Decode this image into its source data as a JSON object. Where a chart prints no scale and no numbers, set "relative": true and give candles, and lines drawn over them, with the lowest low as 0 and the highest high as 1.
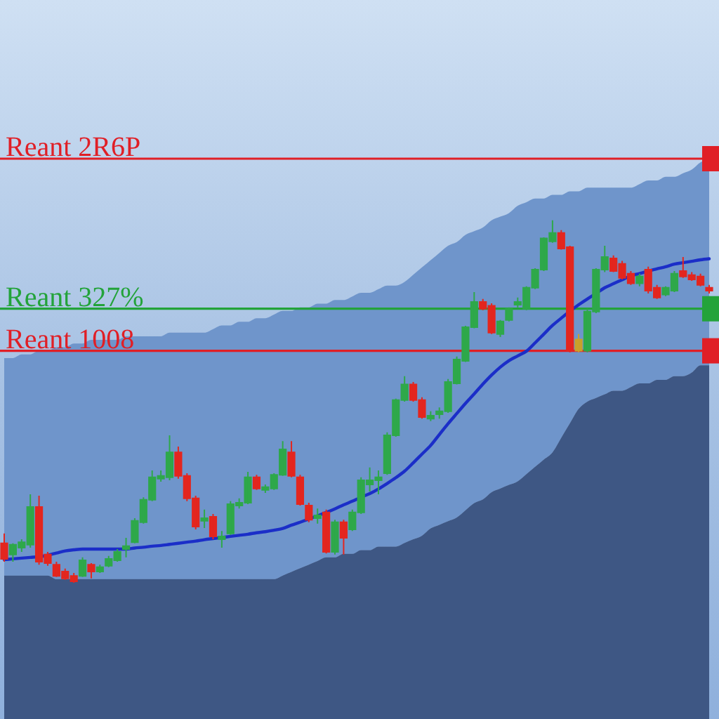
{
  "chart_data": {
    "type": "candlestick",
    "relative": true,
    "categories": [
      null,
      null,
      null,
      null,
      null,
      null,
      null,
      null,
      null,
      null,
      null,
      null,
      null,
      null,
      null,
      null,
      null,
      null,
      null,
      null,
      null,
      null,
      null,
      null,
      null,
      null,
      null,
      null,
      null,
      null,
      null,
      null,
      null,
      null,
      null,
      null,
      null,
      null,
      null,
      null,
      null,
      null,
      null,
      null,
      null,
      null,
      null,
      null,
      null,
      null,
      null,
      null,
      null,
      null,
      null,
      null,
      null,
      null,
      null,
      null,
      null,
      null,
      null,
      null,
      null,
      null,
      null,
      null,
      null,
      null,
      null,
      null,
      null,
      null,
      null,
      null,
      null,
      null,
      null,
      null,
      null,
      null
    ],
    "series": [
      {
        "type": "area",
        "color": "#3e5784",
        "values": [
          0.02,
          0.02,
          0.02,
          0.02,
          0.02,
          0.02,
          0.01,
          0.01,
          0.01,
          0.01,
          0.01,
          0.01,
          0.01,
          0.01,
          0.01,
          0.01,
          0.01,
          0.01,
          0.01,
          0.01,
          0.01,
          0.01,
          0.01,
          0.01,
          0.01,
          0.01,
          0.01,
          0.01,
          0.01,
          0.01,
          0.01,
          0.01,
          0.02,
          0.03,
          0.04,
          0.05,
          0.06,
          0.07,
          0.07,
          0.08,
          0.08,
          0.09,
          0.09,
          0.1,
          0.1,
          0.1,
          0.11,
          0.12,
          0.13,
          0.15,
          0.16,
          0.17,
          0.18,
          0.2,
          0.22,
          0.23,
          0.25,
          0.26,
          0.27,
          0.28,
          0.3,
          0.32,
          0.34,
          0.36,
          0.4,
          0.44,
          0.48,
          0.5,
          0.51,
          0.52,
          0.53,
          0.53,
          0.54,
          0.55,
          0.55,
          0.56,
          0.56,
          0.57,
          0.57,
          0.58,
          0.6,
          0.6
        ]
      },
      {
        "type": "candlestick",
        "ohlc": [
          [
            0.109,
            0.136,
            0.058,
            0.066
          ],
          [
            0.078,
            0.109,
            0.058,
            0.105
          ],
          [
            0.097,
            0.12,
            0.085,
            0.112
          ],
          [
            0.105,
            0.244,
            0.097,
            0.209
          ],
          [
            0.209,
            0.24,
            0.05,
            0.058
          ],
          [
            0.078,
            0.085,
            0.047,
            0.054
          ],
          [
            0.05,
            0.058,
            0.016,
            0.019
          ],
          [
            0.031,
            0.039,
            0.008,
            0.012
          ],
          [
            0.019,
            0.027,
            0,
            0.004
          ],
          [
            0.019,
            0.07,
            0.016,
            0.062
          ],
          [
            0.05,
            0.054,
            0.012,
            0.031
          ],
          [
            0.031,
            0.05,
            0.027,
            0.043
          ],
          [
            0.047,
            0.074,
            0.043,
            0.066
          ],
          [
            0.062,
            0.093,
            0.058,
            0.085
          ],
          [
            0.093,
            0.124,
            0.07,
            0.101
          ],
          [
            0.112,
            0.178,
            0.109,
            0.171
          ],
          [
            0.167,
            0.236,
            0.163,
            0.229
          ],
          [
            0.229,
            0.31,
            0.225,
            0.291
          ],
          [
            0.287,
            0.31,
            0.279,
            0.295
          ],
          [
            0.291,
            0.407,
            0.283,
            0.36
          ],
          [
            0.36,
            0.376,
            0.287,
            0.295
          ],
          [
            0.295,
            0.302,
            0.225,
            0.233
          ],
          [
            0.233,
            0.24,
            0.147,
            0.155
          ],
          [
            0.171,
            0.202,
            0.151,
            0.178
          ],
          [
            0.182,
            0.19,
            0.12,
            0.128
          ],
          [
            0.12,
            0.143,
            0.097,
            0.128
          ],
          [
            0.136,
            0.225,
            0.132,
            0.217
          ],
          [
            0.213,
            0.233,
            0.205,
            0.221
          ],
          [
            0.221,
            0.306,
            0.217,
            0.291
          ],
          [
            0.291,
            0.298,
            0.256,
            0.26
          ],
          [
            0.256,
            0.271,
            0.248,
            0.264
          ],
          [
            0.26,
            0.302,
            0.256,
            0.298
          ],
          [
            0.298,
            0.391,
            0.295,
            0.368
          ],
          [
            0.36,
            0.391,
            0.291,
            0.295
          ],
          [
            0.291,
            0.298,
            0.213,
            0.217
          ],
          [
            0.213,
            0.221,
            0.167,
            0.174
          ],
          [
            0.178,
            0.205,
            0.163,
            0.186
          ],
          [
            0.194,
            0.202,
            0.081,
            0.085
          ],
          [
            0.085,
            0.174,
            0.078,
            0.167
          ],
          [
            0.167,
            0.174,
            0.078,
            0.124
          ],
          [
            0.147,
            0.202,
            0.143,
            0.194
          ],
          [
            0.194,
            0.291,
            0.19,
            0.283
          ],
          [
            0.271,
            0.318,
            0.252,
            0.283
          ],
          [
            0.283,
            0.31,
            0.244,
            0.291
          ],
          [
            0.302,
            0.415,
            0.298,
            0.407
          ],
          [
            0.407,
            0.508,
            0.403,
            0.504
          ],
          [
            0.504,
            0.57,
            0.5,
            0.547
          ],
          [
            0.547,
            0.554,
            0.5,
            0.504
          ],
          [
            0.504,
            0.512,
            0.453,
            0.457
          ],
          [
            0.453,
            0.473,
            0.446,
            0.461
          ],
          [
            0.465,
            0.484,
            0.453,
            0.473
          ],
          [
            0.473,
            0.562,
            0.469,
            0.554
          ],
          [
            0.55,
            0.624,
            0.547,
            0.616
          ],
          [
            0.612,
            0.709,
            0.609,
            0.705
          ],
          [
            0.705,
            0.802,
            0.702,
            0.775
          ],
          [
            0.775,
            0.783,
            0.752,
            0.756
          ],
          [
            0.764,
            0.771,
            0.686,
            0.69
          ],
          [
            0.686,
            0.725,
            0.678,
            0.721
          ],
          [
            0.725,
            0.76,
            0.721,
            0.756
          ],
          [
            0.767,
            0.787,
            0.76,
            0.775
          ],
          [
            0.756,
            0.818,
            0.752,
            0.814
          ],
          [
            0.814,
            0.868,
            0.81,
            0.864
          ],
          [
            0.864,
            0.953,
            0.86,
            0.95
          ],
          [
            0.942,
            1,
            0.938,
            0.965
          ],
          [
            0.965,
            0.973,
            0.919,
            0.922
          ],
          [
            0.926,
            0.93,
            0.636,
            0.64
          ],
          [
            0.64,
            0.686,
            0.636,
            0.671
          ],
          [
            0.64,
            0.756,
            0.636,
            0.748
          ],
          [
            0.748,
            0.868,
            0.744,
            0.864
          ],
          [
            0.864,
            0.93,
            0.857,
            0.899
          ],
          [
            0.895,
            0.903,
            0.857,
            0.86
          ],
          [
            0.88,
            0.888,
            0.837,
            0.841
          ],
          [
            0.853,
            0.86,
            0.822,
            0.826
          ],
          [
            0.826,
            0.853,
            0.818,
            0.845
          ],
          [
            0.864,
            0.872,
            0.798,
            0.806
          ],
          [
            0.814,
            0.822,
            0.783,
            0.787
          ],
          [
            0.795,
            0.818,
            0.791,
            0.814
          ],
          [
            0.806,
            0.86,
            0.802,
            0.853
          ],
          [
            0.86,
            0.899,
            0.841,
            0.845
          ],
          [
            0.849,
            0.857,
            0.833,
            0.837
          ],
          [
            0.845,
            0.853,
            0.818,
            0.822
          ],
          [
            0.814,
            0.822,
            0.798,
            0.806
          ]
        ],
        "colors": [
          "#e3261f",
          "#2ea84a",
          "#2ea84a",
          "#2ea84a",
          "#e3261f",
          "#e3261f",
          "#e3261f",
          "#e3261f",
          "#e3261f",
          "#2ea84a",
          "#e3261f",
          "#2ea84a",
          "#2ea84a",
          "#2ea84a",
          "#2ea84a",
          "#2ea84a",
          "#2ea84a",
          "#2ea84a",
          "#2ea84a",
          "#2ea84a",
          "#e3261f",
          "#e3261f",
          "#e3261f",
          "#2ea84a",
          "#e3261f",
          "#2ea84a",
          "#2ea84a",
          "#2ea84a",
          "#2ea84a",
          "#e3261f",
          "#2ea84a",
          "#2ea84a",
          "#2ea84a",
          "#e3261f",
          "#e3261f",
          "#e3261f",
          "#2ea84a",
          "#e3261f",
          "#2ea84a",
          "#e3261f",
          "#2ea84a",
          "#2ea84a",
          "#2ea84a",
          "#2ea84a",
          "#2ea84a",
          "#2ea84a",
          "#2ea84a",
          "#e3261f",
          "#e3261f",
          "#2ea84a",
          "#2ea84a",
          "#2ea84a",
          "#2ea84a",
          "#2ea84a",
          "#2ea84a",
          "#e3261f",
          "#e3261f",
          "#2ea84a",
          "#2ea84a",
          "#2ea84a",
          "#2ea84a",
          "#2ea84a",
          "#2ea84a",
          "#2ea84a",
          "#e3261f",
          "#e3261f",
          "#c9a12a",
          "#2ea84a",
          "#2ea84a",
          "#2ea84a",
          "#e3261f",
          "#e3261f",
          "#e3261f",
          "#2ea84a",
          "#e3261f",
          "#e3261f",
          "#2ea84a",
          "#2ea84a",
          "#e3261f",
          "#e3261f",
          "#e3261f",
          "#e3261f"
        ]
      },
      {
        "type": "line",
        "color": "#1b2ec8",
        "values": [
          0.064,
          0.066,
          0.068,
          0.07,
          0.072,
          0.076,
          0.082,
          0.088,
          0.091,
          0.093,
          0.093,
          0.093,
          0.093,
          0.093,
          0.093,
          0.096,
          0.098,
          0.101,
          0.103,
          0.106,
          0.109,
          0.112,
          0.115,
          0.119,
          0.122,
          0.125,
          0.128,
          0.131,
          0.134,
          0.138,
          0.141,
          0.145,
          0.15,
          0.159,
          0.167,
          0.176,
          0.185,
          0.194,
          0.204,
          0.215,
          0.225,
          0.236,
          0.246,
          0.259,
          0.274,
          0.29,
          0.308,
          0.331,
          0.355,
          0.379,
          0.409,
          0.439,
          0.467,
          0.495,
          0.521,
          0.548,
          0.573,
          0.595,
          0.613,
          0.626,
          0.639,
          0.662,
          0.686,
          0.71,
          0.73,
          0.749,
          0.767,
          0.783,
          0.798,
          0.814,
          0.825,
          0.836,
          0.847,
          0.853,
          0.86,
          0.866,
          0.872,
          0.879,
          0.883,
          0.887,
          0.891,
          0.894
        ],
        "lower": [
          0.02,
          0.02,
          0.02,
          0.02,
          0.02,
          0.02,
          0.01,
          0.01,
          0.01,
          0.01,
          0.01,
          0.01,
          0.01,
          0.01,
          0.01,
          0.01,
          0.01,
          0.01,
          0.01,
          0.01,
          0.01,
          0.01,
          0.01,
          0.01,
          0.01,
          0.01,
          0.01,
          0.01,
          0.01,
          0.01,
          0.01,
          0.01,
          0.02,
          0.03,
          0.04,
          0.05,
          0.06,
          0.07,
          0.07,
          0.08,
          0.08,
          0.09,
          0.09,
          0.1,
          0.1,
          0.1,
          0.11,
          0.12,
          0.13,
          0.15,
          0.16,
          0.17,
          0.18,
          0.2,
          0.22,
          0.23,
          0.25,
          0.26,
          0.27,
          0.28,
          0.3,
          0.32,
          0.34,
          0.36,
          0.4,
          0.44,
          0.48,
          0.5,
          0.51,
          0.52,
          0.53,
          0.53,
          0.54,
          0.55,
          0.55,
          0.56,
          0.56,
          0.57,
          0.57,
          0.58,
          0.6,
          0.6
        ],
        "upper": [
          0.62,
          0.62,
          0.63,
          0.63,
          0.64,
          0.64,
          0.65,
          0.65,
          0.66,
          0.66,
          0.67,
          0.67,
          0.67,
          0.67,
          0.68,
          0.68,
          0.68,
          0.68,
          0.68,
          0.69,
          0.69,
          0.69,
          0.69,
          0.69,
          0.7,
          0.71,
          0.71,
          0.72,
          0.72,
          0.73,
          0.73,
          0.74,
          0.75,
          0.75,
          0.76,
          0.76,
          0.77,
          0.77,
          0.78,
          0.78,
          0.79,
          0.8,
          0.8,
          0.81,
          0.82,
          0.82,
          0.83,
          0.85,
          0.87,
          0.89,
          0.91,
          0.93,
          0.94,
          0.96,
          0.97,
          0.98,
          1.0,
          1.01,
          1.02,
          1.04,
          1.05,
          1.06,
          1.06,
          1.07,
          1.07,
          1.08,
          1.08,
          1.09,
          1.09,
          1.09,
          1.09,
          1.09,
          1.09,
          1.1,
          1.11,
          1.11,
          1.12,
          1.12,
          1.13,
          1.14,
          1.16,
          1.17
        ]
      }
    ],
    "ref_lines": [
      {
        "axis": "y",
        "value": 1.17,
        "label": "Reant 2R6P",
        "color": "#e01f26"
      },
      {
        "axis": "y",
        "value": 0.756,
        "label": "Reant 327%",
        "color": "#23a33a"
      },
      {
        "axis": "y",
        "value": 0.64,
        "label": "Reant 1008",
        "color": "#e01f26"
      }
    ]
  }
}
